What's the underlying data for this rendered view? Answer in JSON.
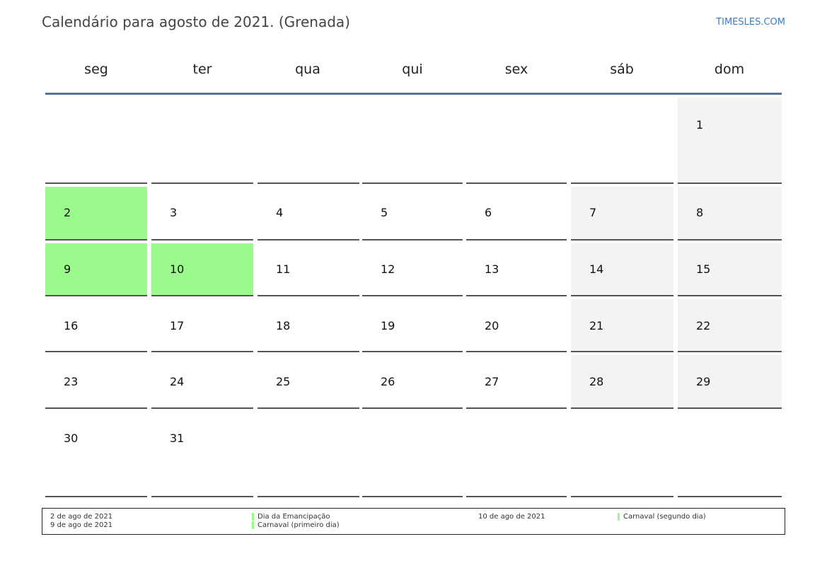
{
  "title": "Calendário para agosto de 2021. (Grenada)",
  "brand": "TIMESLES.COM",
  "colors": {
    "holiday": "#9bfa8c",
    "weekend": "#f3f3f3",
    "header_line": "#5b7393",
    "brand": "#3b7fc4"
  },
  "weekdays": [
    "seg",
    "ter",
    "qua",
    "qui",
    "sex",
    "sáb",
    "dom"
  ],
  "weeks": [
    [
      null,
      null,
      null,
      null,
      null,
      null,
      "1"
    ],
    [
      "2",
      "3",
      "4",
      "5",
      "6",
      "7",
      "8"
    ],
    [
      "9",
      "10",
      "11",
      "12",
      "13",
      "14",
      "15"
    ],
    [
      "16",
      "17",
      "18",
      "19",
      "20",
      "21",
      "22"
    ],
    [
      "23",
      "24",
      "25",
      "26",
      "27",
      "28",
      "29"
    ],
    [
      "30",
      "31",
      null,
      null,
      null,
      null,
      null
    ]
  ],
  "holiday_days": [
    "2",
    "9",
    "10"
  ],
  "legend": [
    {
      "date": "2 de ago de 2021",
      "name": "Dia da Emancipação"
    },
    {
      "date": "9 de ago de 2021",
      "name": "Carnaval (primeiro dia)"
    },
    {
      "date": "10 de ago de 2021",
      "name": "Carnaval (segundo dia)"
    }
  ]
}
